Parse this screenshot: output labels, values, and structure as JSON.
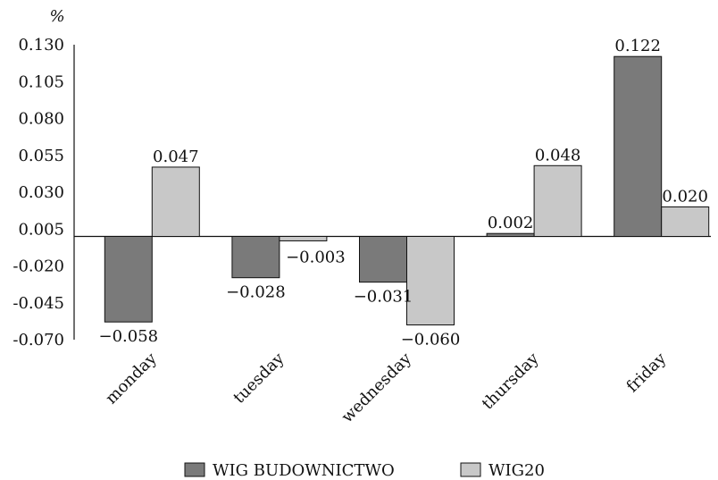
{
  "chart_data": {
    "type": "bar",
    "unit_label": "%",
    "categories": [
      "monday",
      "tuesday",
      "wednesday",
      "thursday",
      "friday"
    ],
    "series": [
      {
        "name": "WIG BUDOWNICTWO",
        "color": "#7a7a7a",
        "values": [
          -0.058,
          -0.028,
          -0.031,
          0.002,
          0.122
        ],
        "labels": [
          "−0.058",
          "−0.028",
          "−0.031",
          "0.002",
          "0.122"
        ]
      },
      {
        "name": "WIG20",
        "color": "#c8c8c8",
        "values": [
          0.047,
          -0.003,
          -0.06,
          0.048,
          0.02
        ],
        "labels": [
          "0.047",
          "−0.003",
          "−0.060",
          "0.048",
          "0.020"
        ]
      }
    ],
    "y_ticks": [
      "0.130",
      "0.105",
      "0.080",
      "0.055",
      "0.030",
      "0.005",
      "-0.020",
      "-0.045",
      "-0.070"
    ],
    "y_tick_values": [
      0.13,
      0.105,
      0.08,
      0.055,
      0.03,
      0.005,
      -0.02,
      -0.045,
      -0.07
    ],
    "ylim": [
      -0.07,
      0.13
    ],
    "legend_position": "bottom",
    "grid": false
  }
}
